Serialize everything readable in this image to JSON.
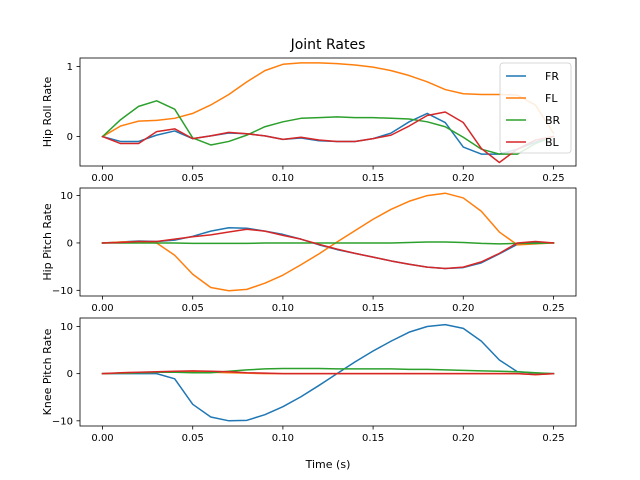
{
  "chart_data": {
    "type": "line",
    "title": "Joint Rates",
    "xlabel": "Time (s)",
    "x": [
      0.0,
      0.01,
      0.02,
      0.03,
      0.04,
      0.05,
      0.06,
      0.07,
      0.08,
      0.09,
      0.1,
      0.11,
      0.12,
      0.13,
      0.14,
      0.15,
      0.16,
      0.17,
      0.18,
      0.19,
      0.2,
      0.21,
      0.22,
      0.23,
      0.24,
      0.25
    ],
    "xlim": [
      -0.0125,
      0.2625
    ],
    "xticks": [
      0.0,
      0.05,
      0.1,
      0.15,
      0.2,
      0.25
    ],
    "xtick_labels": [
      "0.00",
      "0.05",
      "0.10",
      "0.15",
      "0.20",
      "0.25"
    ],
    "legend": {
      "location": "upper right",
      "entries": [
        "FR",
        "FL",
        "BR",
        "BL"
      ]
    },
    "series_colors": {
      "FR": "#1f77b4",
      "FL": "#ff7f0e",
      "BR": "#2ca02c",
      "BL": "#d62728"
    },
    "panels": [
      {
        "ylabel": "Hip Roll Rate",
        "ylim": [
          -0.42,
          1.12
        ],
        "yticks": [
          0,
          1
        ],
        "ytick_labels": [
          "0",
          "1"
        ],
        "series": [
          {
            "name": "FR",
            "values": [
              0.0,
              -0.07,
              -0.07,
              0.02,
              0.08,
              -0.03,
              0.01,
              0.05,
              0.04,
              0.01,
              -0.04,
              -0.02,
              -0.06,
              -0.07,
              -0.07,
              -0.03,
              0.05,
              0.21,
              0.33,
              0.2,
              -0.15,
              -0.25,
              -0.25,
              -0.18,
              -0.08,
              0.0
            ]
          },
          {
            "name": "FL",
            "values": [
              0.0,
              0.15,
              0.22,
              0.23,
              0.26,
              0.33,
              0.45,
              0.6,
              0.78,
              0.94,
              1.03,
              1.05,
              1.05,
              1.04,
              1.02,
              0.99,
              0.94,
              0.87,
              0.78,
              0.67,
              0.61,
              0.6,
              0.6,
              0.59,
              0.45,
              0.05
            ]
          },
          {
            "name": "BR",
            "values": [
              0.0,
              0.24,
              0.43,
              0.51,
              0.39,
              -0.02,
              -0.12,
              -0.07,
              0.02,
              0.14,
              0.21,
              0.26,
              0.27,
              0.28,
              0.27,
              0.27,
              0.26,
              0.25,
              0.21,
              0.14,
              -0.01,
              -0.18,
              -0.25,
              -0.25,
              -0.1,
              0.0
            ]
          },
          {
            "name": "BL",
            "values": [
              0.0,
              -0.1,
              -0.1,
              0.07,
              0.11,
              -0.03,
              0.01,
              0.06,
              0.04,
              0.01,
              -0.04,
              -0.01,
              -0.05,
              -0.07,
              -0.07,
              -0.03,
              0.02,
              0.15,
              0.3,
              0.35,
              0.2,
              -0.17,
              -0.37,
              -0.18,
              -0.05,
              0.0
            ]
          }
        ]
      },
      {
        "ylabel": "Hip Pitch Rate",
        "ylim": [
          -11.2,
          11.6
        ],
        "yticks": [
          -10,
          0,
          10
        ],
        "ytick_labels": [
          "−10",
          "0",
          "10"
        ],
        "series": [
          {
            "name": "FR",
            "values": [
              0.0,
              0.2,
              0.4,
              0.3,
              0.6,
              1.4,
              2.5,
              3.2,
              3.1,
              2.5,
              1.8,
              0.8,
              -0.4,
              -1.4,
              -2.2,
              -3.0,
              -3.8,
              -4.5,
              -5.1,
              -5.4,
              -5.2,
              -4.2,
              -2.3,
              -0.3,
              0.1,
              0.0
            ]
          },
          {
            "name": "FL",
            "values": [
              0.0,
              0.2,
              0.3,
              0.0,
              -2.6,
              -6.6,
              -9.4,
              -10.1,
              -9.8,
              -8.5,
              -6.8,
              -4.6,
              -2.3,
              0.2,
              2.6,
              5.0,
              7.1,
              8.8,
              10.0,
              10.5,
              9.5,
              6.7,
              2.3,
              -0.4,
              -0.2,
              0.0
            ]
          },
          {
            "name": "BR",
            "values": [
              0.0,
              0.0,
              0.0,
              0.0,
              0.0,
              -0.1,
              -0.1,
              -0.1,
              -0.1,
              0.0,
              0.0,
              0.0,
              0.0,
              0.0,
              0.0,
              0.0,
              0.0,
              0.1,
              0.2,
              0.2,
              0.1,
              -0.1,
              -0.2,
              -0.1,
              -0.1,
              0.0
            ]
          },
          {
            "name": "BL",
            "values": [
              0.0,
              0.1,
              0.3,
              0.3,
              0.8,
              1.3,
              1.7,
              2.3,
              2.9,
              2.5,
              1.6,
              0.8,
              -0.3,
              -1.3,
              -2.2,
              -3.0,
              -3.8,
              -4.5,
              -5.1,
              -5.4,
              -5.1,
              -4.0,
              -2.2,
              0.0,
              0.3,
              0.0
            ]
          }
        ]
      },
      {
        "ylabel": "Knee Pitch Rate",
        "ylim": [
          -11.1,
          11.8
        ],
        "yticks": [
          -10,
          0,
          10
        ],
        "ytick_labels": [
          "−10",
          "0",
          "10"
        ],
        "series": [
          {
            "name": "FR",
            "values": [
              0.0,
              0.0,
              0.0,
              0.0,
              -1.1,
              -6.5,
              -9.2,
              -10.0,
              -9.9,
              -8.7,
              -7.0,
              -4.9,
              -2.5,
              0.0,
              2.5,
              4.8,
              6.9,
              8.8,
              10.0,
              10.4,
              9.6,
              6.9,
              2.9,
              0.4,
              0.1,
              0.0
            ]
          },
          {
            "name": "FL",
            "values": [
              0.0,
              0.1,
              0.2,
              0.3,
              0.3,
              0.3,
              0.3,
              0.2,
              0.1,
              0.0,
              0.0,
              0.0,
              0.0,
              0.0,
              0.0,
              0.0,
              0.0,
              0.0,
              0.0,
              0.0,
              0.0,
              0.0,
              0.0,
              0.0,
              -0.2,
              0.0
            ]
          },
          {
            "name": "BR",
            "values": [
              0.0,
              0.1,
              0.2,
              0.3,
              0.3,
              0.2,
              0.2,
              0.5,
              0.8,
              1.0,
              1.1,
              1.1,
              1.1,
              1.0,
              1.0,
              1.0,
              1.0,
              0.9,
              0.9,
              0.8,
              0.7,
              0.6,
              0.5,
              0.4,
              0.2,
              0.0
            ]
          },
          {
            "name": "BL",
            "values": [
              0.0,
              0.2,
              0.3,
              0.4,
              0.5,
              0.6,
              0.5,
              0.4,
              0.2,
              0.1,
              0.0,
              0.0,
              0.0,
              0.0,
              0.0,
              0.0,
              0.0,
              0.0,
              0.0,
              0.0,
              0.0,
              0.0,
              0.0,
              0.0,
              -0.2,
              0.0
            ]
          }
        ]
      }
    ]
  }
}
